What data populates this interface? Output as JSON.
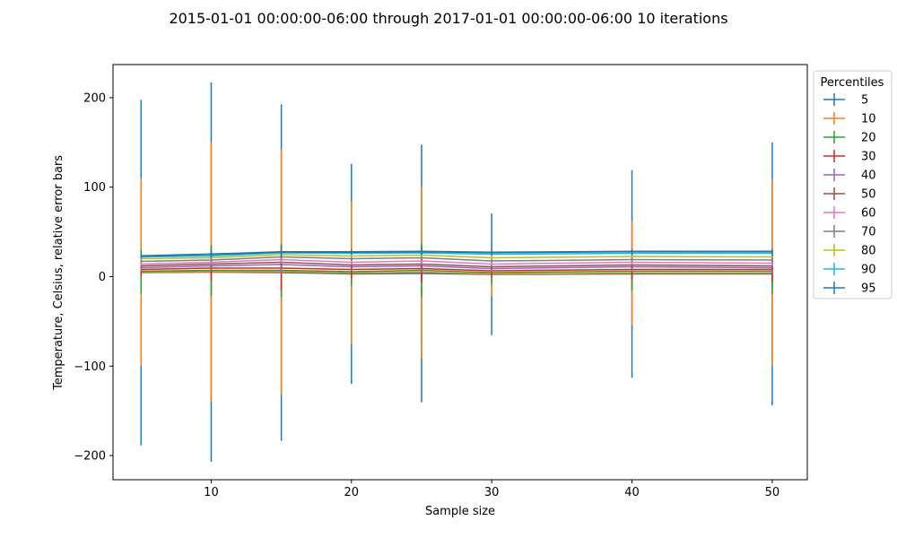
{
  "chart_data": {
    "type": "line",
    "title": "2015-01-01 00:00:00-06:00 through 2017-01-01 00:00:00-06:00 10 iterations",
    "xlabel": "Sample size",
    "ylabel": "Temperature, Celsius, relative error bars",
    "xlim": [
      3,
      52.5
    ],
    "ylim": [
      -227,
      237
    ],
    "xticks": [
      10,
      20,
      30,
      40,
      50
    ],
    "yticks": [
      -200,
      -100,
      0,
      100,
      200
    ],
    "ytick_labels": [
      "−200",
      "−100",
      "0",
      "100",
      "200"
    ],
    "grid": false,
    "legend": {
      "title": "Percentiles",
      "placement": "right-outside-top"
    },
    "x": [
      5,
      10,
      15,
      20,
      25,
      30,
      40,
      50
    ],
    "series": [
      {
        "name": "5",
        "color": "#1f77b4",
        "y": [
          4.5,
          5,
          4.5,
          3,
          3.5,
          2.5,
          3,
          3
        ],
        "err": [
          193,
          212,
          188,
          123,
          144,
          68,
          116,
          147
        ]
      },
      {
        "name": "10",
        "color": "#ff7f0e",
        "y": [
          5,
          5.5,
          5.5,
          4,
          5,
          3,
          4,
          4
        ],
        "err": [
          105,
          145,
          137,
          80,
          96,
          25,
          58,
          104
        ]
      },
      {
        "name": "20",
        "color": "#2ca02c",
        "y": [
          6,
          7,
          7,
          5.5,
          7,
          4.5,
          6,
          6
        ],
        "err": [
          25,
          28,
          30,
          16,
          30,
          14,
          22,
          25
        ]
      },
      {
        "name": "30",
        "color": "#d62728",
        "y": [
          8,
          9.5,
          9.5,
          8,
          9,
          6.5,
          8,
          8
        ],
        "err": [
          8,
          14,
          25,
          10,
          16,
          8,
          12,
          14
        ]
      },
      {
        "name": "40",
        "color": "#9467bd",
        "y": [
          10,
          12,
          13.5,
          11,
          12,
          9,
          11,
          10
        ],
        "err": [
          4,
          6,
          10,
          5,
          7,
          4,
          6,
          6
        ]
      },
      {
        "name": "50",
        "color": "#8c564b",
        "y": [
          12,
          14,
          16,
          13,
          14,
          11,
          13,
          12
        ],
        "err": [
          3,
          4,
          6,
          4,
          5,
          3,
          4,
          4
        ]
      },
      {
        "name": "60",
        "color": "#e377c2",
        "y": [
          14,
          16,
          19,
          16,
          17.5,
          14,
          16,
          15
        ],
        "err": [
          2,
          3,
          4,
          3,
          4,
          2,
          3,
          3
        ]
      },
      {
        "name": "70",
        "color": "#7f7f7f",
        "y": [
          17,
          18.5,
          22,
          20,
          21,
          17.5,
          19,
          18.5
        ],
        "err": [
          2,
          2,
          3,
          2,
          3,
          2,
          2,
          2
        ]
      },
      {
        "name": "80",
        "color": "#bcbd22",
        "y": [
          20,
          21,
          24.5,
          23,
          24,
          21,
          22.5,
          22
        ],
        "err": [
          1,
          1,
          2,
          1,
          2,
          1,
          1,
          1
        ]
      },
      {
        "name": "90",
        "color": "#17becf",
        "y": [
          22,
          23,
          26.5,
          26,
          26.5,
          25,
          26,
          26
        ],
        "err": [
          1,
          1,
          1,
          1,
          1,
          1,
          1,
          1
        ]
      },
      {
        "name": "95",
        "color": "#1f77b4",
        "y": [
          23,
          25,
          27.5,
          27.5,
          28,
          27,
          28,
          28
        ],
        "err": [
          3,
          4,
          6,
          3,
          4,
          3,
          3,
          3
        ]
      }
    ]
  }
}
